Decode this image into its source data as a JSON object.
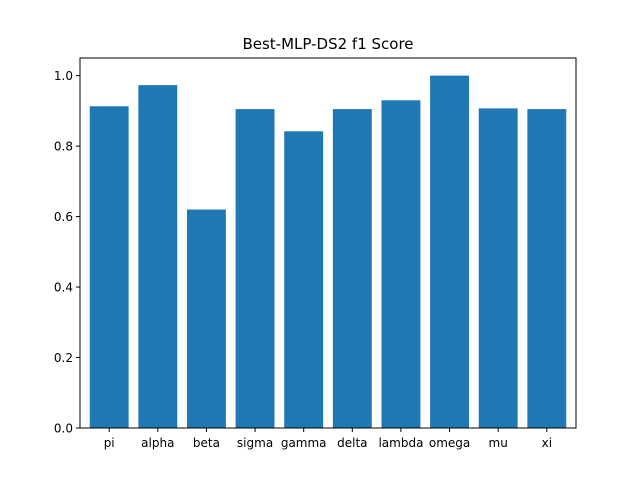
{
  "chart_data": {
    "type": "bar",
    "title": "Best-MLP-DS2 f1 Score",
    "xlabel": "",
    "ylabel": "",
    "categories": [
      "pi",
      "alpha",
      "beta",
      "sigma",
      "gamma",
      "delta",
      "lambda",
      "omega",
      "mu",
      "xi"
    ],
    "values": [
      0.913,
      0.973,
      0.62,
      0.905,
      0.842,
      0.905,
      0.93,
      1.0,
      0.907,
      0.905
    ],
    "ylim": [
      0,
      1.05
    ],
    "yticks": [
      0.0,
      0.2,
      0.4,
      0.6,
      0.8,
      1.0
    ],
    "ytick_labels": [
      "0.0",
      "0.2",
      "0.4",
      "0.6",
      "0.8",
      "1.0"
    ],
    "grid": false,
    "legend": "none",
    "bar_color": "#1f77b4"
  }
}
